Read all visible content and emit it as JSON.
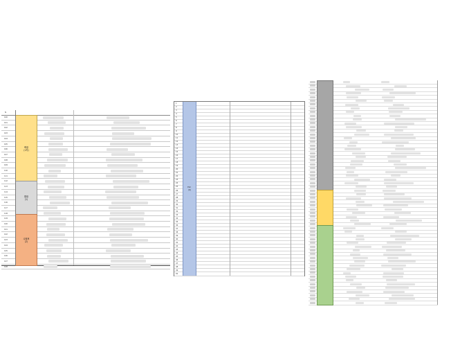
{
  "left_table": {
    "header_label": "N",
    "row_numbers": [
      "100",
      "101",
      "102",
      "103",
      "104",
      "105",
      "106",
      "107",
      "108",
      "109",
      "110",
      "111",
      "112",
      "113",
      "114",
      "115",
      "116",
      "117",
      "118",
      "119",
      "120",
      "121",
      "122",
      "123",
      "124",
      "125",
      "126",
      "127",
      "128"
    ],
    "groups": [
      {
        "label": "축정\n(1차)",
        "color": "#ffe08a"
      },
      {
        "label": "합정\n(1)",
        "color": "#d9d9d9"
      },
      {
        "label": "수정후\n(2)",
        "color": "#f4b183"
      }
    ]
  },
  "middle_table": {
    "group_label": "PLC \n(Q)",
    "group_color": "#b4c6e7",
    "row_numbers": [
      "1",
      "2",
      "3",
      "4",
      "5",
      "6",
      "7",
      "8",
      "9",
      "10",
      "11",
      "12",
      "13",
      "14",
      "15",
      "16",
      "17",
      "18",
      "19",
      "20",
      "21",
      "22",
      "23",
      "24",
      "25",
      "26",
      "27",
      "28",
      "29",
      "30",
      "31",
      "32",
      "33",
      "34",
      "35",
      "36",
      "37",
      "38",
      "39",
      "40",
      "41",
      "42",
      "43",
      "44",
      "45",
      "46",
      "47",
      "48",
      "49",
      "50"
    ],
    "names": [
      "",
      "",
      "",
      "",
      "",
      "",
      "",
      "",
      "",
      "",
      "",
      "",
      "",
      "",
      "",
      "",
      "",
      "",
      "",
      "",
      "",
      "",
      "",
      "",
      "",
      "",
      "",
      "",
      "",
      "",
      "",
      "",
      "",
      "",
      "",
      "",
      "",
      "",
      "",
      "",
      "",
      "",
      "",
      "",
      "",
      "",
      "",
      "",
      "",
      ""
    ],
    "urls": [
      "",
      "",
      "",
      "",
      "",
      "",
      "",
      "",
      "",
      "",
      "",
      "",
      "",
      "",
      "",
      "",
      "",
      "",
      "",
      "",
      "",
      "",
      "",
      "",
      "",
      "",
      "",
      "",
      "",
      "",
      "",
      "",
      "",
      "",
      "",
      "",
      "",
      "",
      "",
      "",
      "",
      "",
      "",
      "",
      "",
      "",
      "",
      "",
      "",
      ""
    ]
  },
  "right_table": {
    "groups": [
      {
        "label": "",
        "color": "#a6a6a6"
      },
      {
        "label": "",
        "color": "#ffd966"
      },
      {
        "label": "",
        "color": "#a9d18e"
      }
    ]
  }
}
